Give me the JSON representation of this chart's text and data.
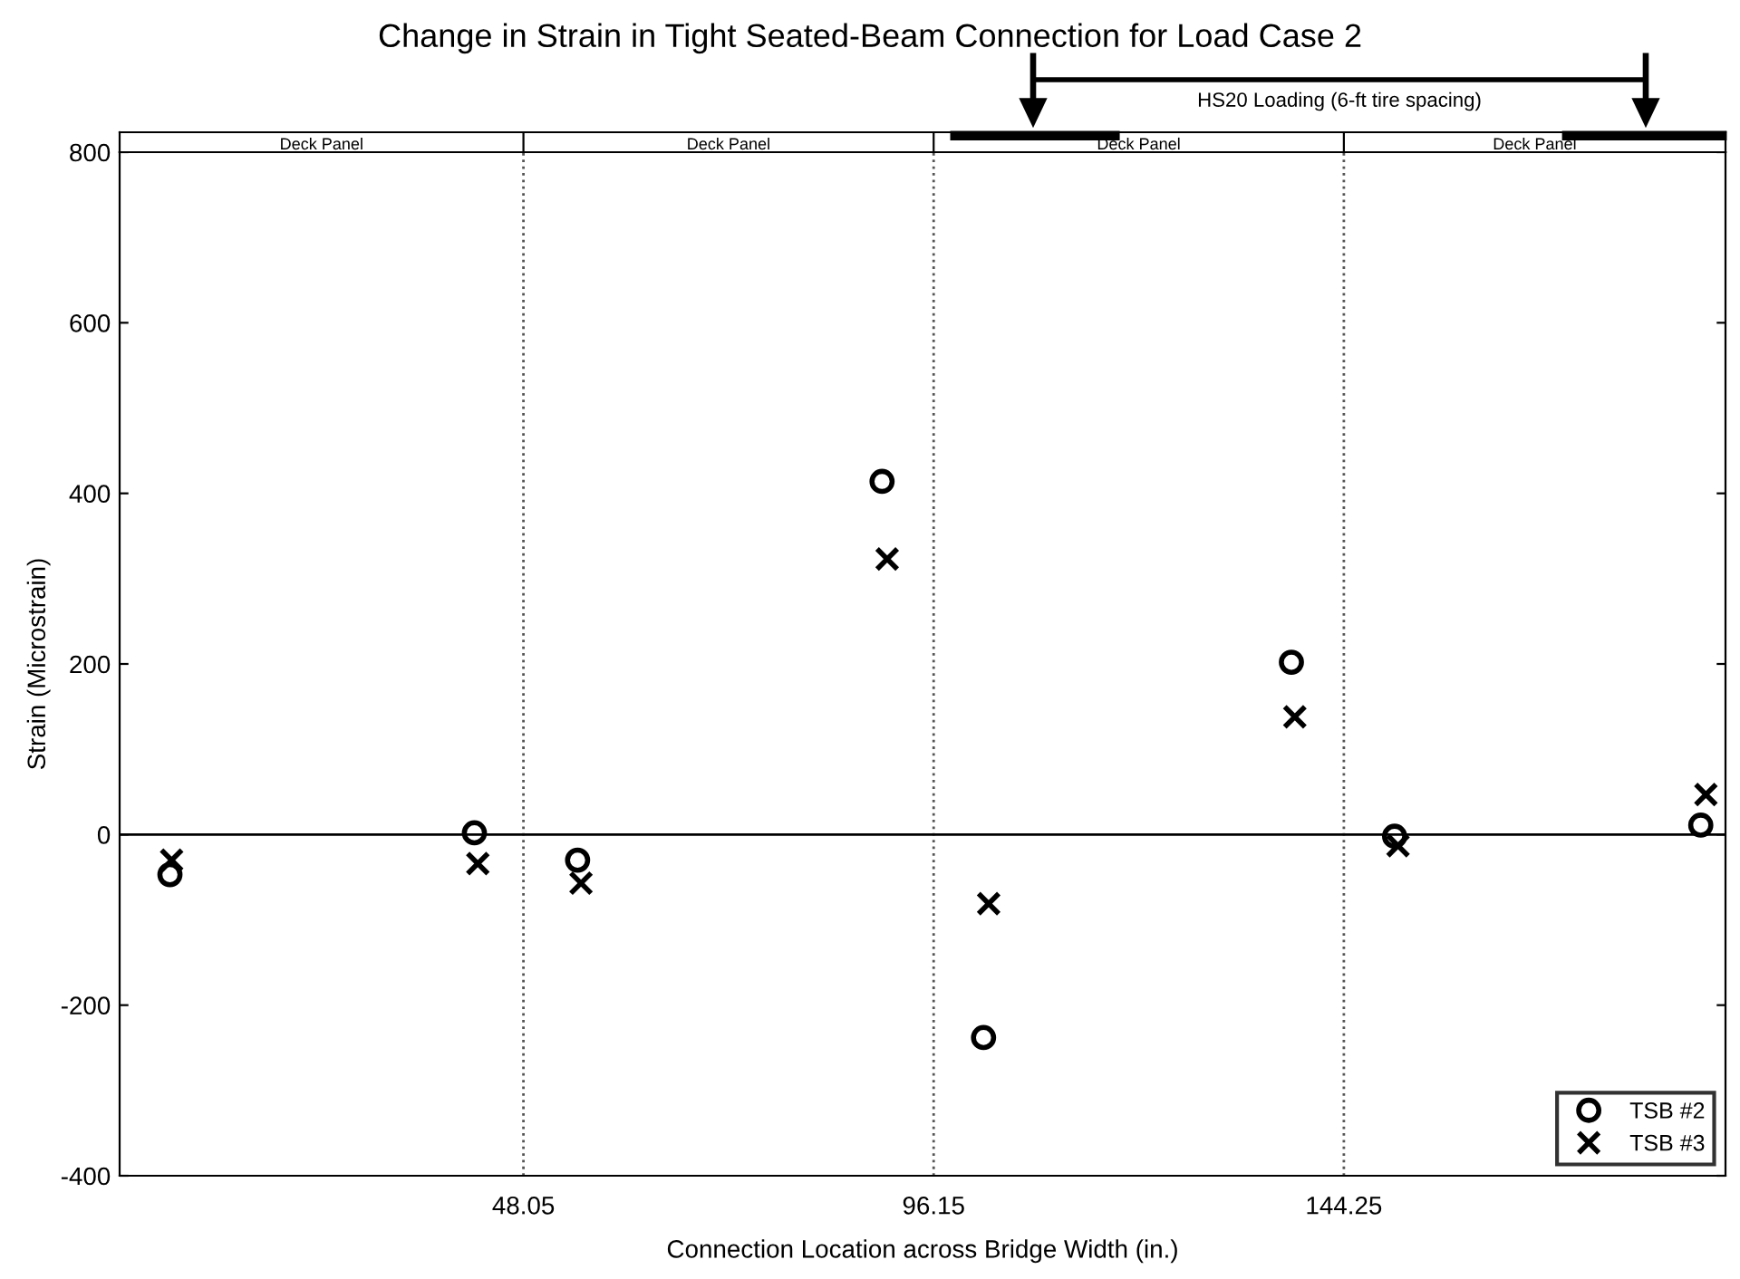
{
  "chart_data": {
    "type": "scatter",
    "title": "Change in Strain in Tight Seated-Beam Connection for Load Case 2",
    "xlabel": "Connection Location across Bridge Width (in.)",
    "ylabel": "Strain (Microstrain)",
    "annotations": [
      "HS20 Loading (6-ft tire spacing)",
      "Deck Panel",
      "Deck Panel",
      "Deck Panel",
      "Deck Panel"
    ],
    "series": [
      {
        "name": "TSB #2",
        "color": "#000000",
        "marker": "circle",
        "x": [
          6.6,
          42.3,
          54.4,
          90.1,
          102.0,
          138.1,
          150.2,
          186.1
        ],
        "values": [
          -47,
          2,
          -30,
          414,
          -238,
          202,
          -2,
          11
        ]
      },
      {
        "name": "TSB #3",
        "color": "#000000",
        "marker": "cross",
        "x": [
          6.8,
          42.7,
          54.8,
          90.7,
          102.6,
          138.5,
          150.6,
          186.7
        ],
        "values": [
          -30,
          -34,
          -57,
          323,
          -81,
          138,
          -13,
          47
        ]
      }
    ],
    "xlim": [
      0.7,
      189
    ],
    "xticks": [
      48.05,
      96.15,
      144.25
    ],
    "ylim": [
      -400,
      800
    ],
    "yticks": [
      -400,
      -200,
      0,
      200,
      400,
      600,
      800
    ],
    "ref_lines": [
      {
        "axis": "y",
        "value": 0,
        "color": "#000000",
        "line_style": "solid"
      }
    ],
    "grid": "x",
    "legend": "bottom right"
  }
}
